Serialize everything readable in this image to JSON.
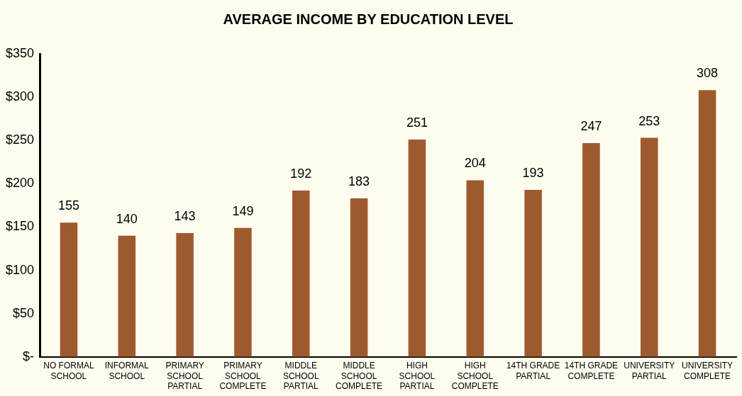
{
  "chart_data": {
    "type": "bar",
    "title": "AVERAGE INCOME BY EDUCATION LEVEL",
    "categories": [
      "NO FORMAL SCHOOL",
      "INFORMAL SCHOOL",
      "PRIMARY SCHOOL PARTIAL",
      "PRIMARY SCHOOL COMPLETE",
      "MIDDLE SCHOOL PARTIAL",
      "MIDDLE SCHOOL COMPLETE",
      "HIGH SCHOOL PARTIAL",
      "HIGH SCHOOL COMPLETE",
      "14TH GRADE PARTIAL",
      "14TH GRADE COMPLETE",
      "UNIVERSITY PARTIAL",
      "UNIVERSITY COMPLETE"
    ],
    "values": [
      155,
      140,
      143,
      149,
      192,
      183,
      251,
      204,
      193,
      247,
      253,
      308
    ],
    "color": "#9e5a2f",
    "ylim": [
      0,
      350
    ],
    "yticks": [
      {
        "value": 0,
        "label": "$-"
      },
      {
        "value": 50,
        "label": "$50"
      },
      {
        "value": 100,
        "label": "$100"
      },
      {
        "value": 150,
        "label": "$150"
      },
      {
        "value": 200,
        "label": "$200"
      },
      {
        "value": 250,
        "label": "$250"
      },
      {
        "value": 300,
        "label": "$300"
      },
      {
        "value": 350,
        "label": "$350"
      }
    ],
    "grid": false,
    "legend": false,
    "data_labels": true
  }
}
